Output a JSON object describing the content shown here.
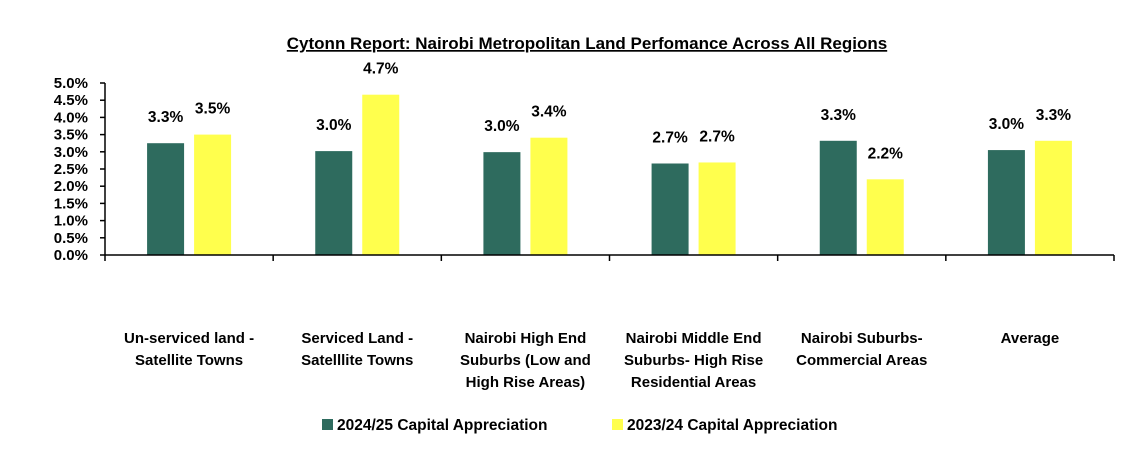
{
  "chart_data": {
    "type": "bar",
    "title": "Cytonn Report: Nairobi Metropolitan Land Perfomance Across All Regions",
    "xlabel": "",
    "ylabel": "",
    "ylim": [
      0,
      5.0
    ],
    "y_unit": "%",
    "y_ticks": [
      "0.0%",
      "0.5%",
      "1.0%",
      "1.5%",
      "2.0%",
      "2.5%",
      "3.0%",
      "3.5%",
      "4.0%",
      "4.5%",
      "5.0%"
    ],
    "grid": false,
    "legend_position": "bottom",
    "categories": [
      [
        "Un-serviced land -",
        "Satellite Towns"
      ],
      [
        "Serviced Land -",
        "Satelllite Towns"
      ],
      [
        "Nairobi High End",
        "Suburbs (Low and",
        "High Rise Areas)"
      ],
      [
        "Nairobi Middle End",
        "Suburbs- High Rise",
        "Residential Areas"
      ],
      [
        "Nairobi Suburbs-",
        "Commercial Areas"
      ],
      [
        "Average"
      ]
    ],
    "series": [
      {
        "name": "2024/25 Capital Appreciation",
        "color": "#2E6B5E",
        "values": [
          3.25,
          3.02,
          2.99,
          2.66,
          3.32,
          3.05
        ],
        "labels": [
          "3.3%",
          "3.0%",
          "3.0%",
          "2.7%",
          "3.3%",
          "3.0%"
        ]
      },
      {
        "name": "2023/24 Capital Appreciation",
        "color": "#FFFF4D",
        "values": [
          3.5,
          4.66,
          3.41,
          2.69,
          2.2,
          3.32
        ],
        "labels": [
          "3.5%",
          "4.7%",
          "3.4%",
          "2.7%",
          "2.2%",
          "3.3%"
        ]
      }
    ]
  }
}
